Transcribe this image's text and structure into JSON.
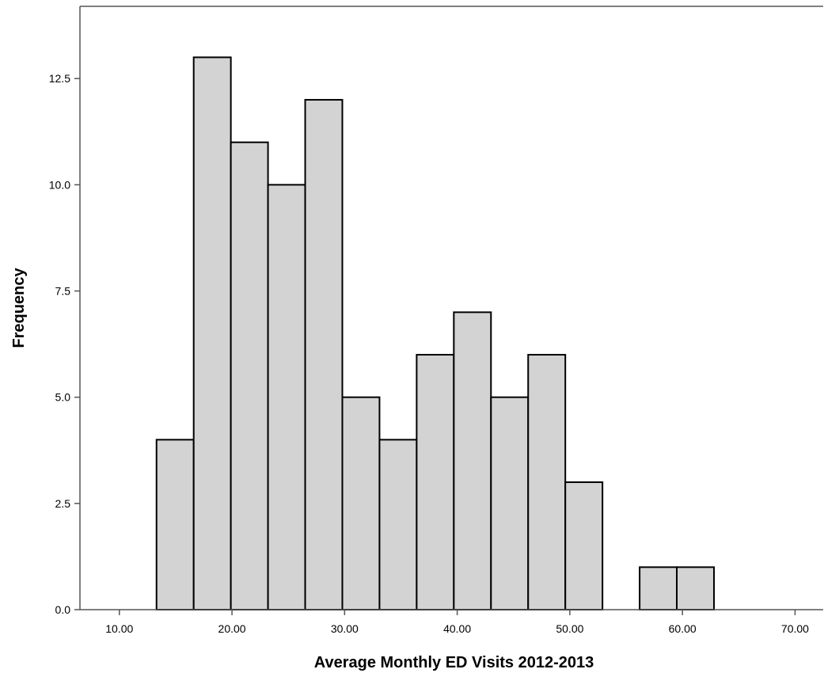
{
  "chart_data": {
    "type": "bar",
    "subtype": "histogram",
    "xlabel": "Average Monthly ED Visits 2012-2013",
    "ylabel": "Frequency",
    "xlim": [
      6.5,
      72.5
    ],
    "ylim": [
      0,
      14.2
    ],
    "x_ticks": [
      10,
      20,
      30,
      40,
      50,
      60,
      70
    ],
    "x_tick_labels": [
      "10.00",
      "20.00",
      "30.00",
      "40.00",
      "50.00",
      "60.00",
      "70.00"
    ],
    "y_ticks": [
      0,
      2.5,
      5,
      7.5,
      10,
      12.5
    ],
    "y_tick_labels": [
      "0.0",
      "2.5",
      "5.0",
      "7.5",
      "10.0",
      "12.5"
    ],
    "bins": [
      {
        "x0": 13.3,
        "x1": 16.6,
        "count": 4
      },
      {
        "x0": 16.6,
        "x1": 19.9,
        "count": 13
      },
      {
        "x0": 19.9,
        "x1": 23.2,
        "count": 11
      },
      {
        "x0": 23.2,
        "x1": 26.5,
        "count": 10
      },
      {
        "x0": 26.5,
        "x1": 29.8,
        "count": 12
      },
      {
        "x0": 29.8,
        "x1": 33.1,
        "count": 5
      },
      {
        "x0": 33.1,
        "x1": 36.4,
        "count": 4
      },
      {
        "x0": 36.4,
        "x1": 39.7,
        "count": 6
      },
      {
        "x0": 39.7,
        "x1": 43.0,
        "count": 7
      },
      {
        "x0": 43.0,
        "x1": 46.3,
        "count": 5
      },
      {
        "x0": 46.3,
        "x1": 49.6,
        "count": 6
      },
      {
        "x0": 49.6,
        "x1": 52.9,
        "count": 3
      },
      {
        "x0": 52.9,
        "x1": 56.2,
        "count": 0
      },
      {
        "x0": 56.2,
        "x1": 59.5,
        "count": 1
      },
      {
        "x0": 59.5,
        "x1": 62.8,
        "count": 1
      }
    ],
    "bar_color": "#d3d3d3",
    "edge_color": "#000000",
    "grid": false
  }
}
